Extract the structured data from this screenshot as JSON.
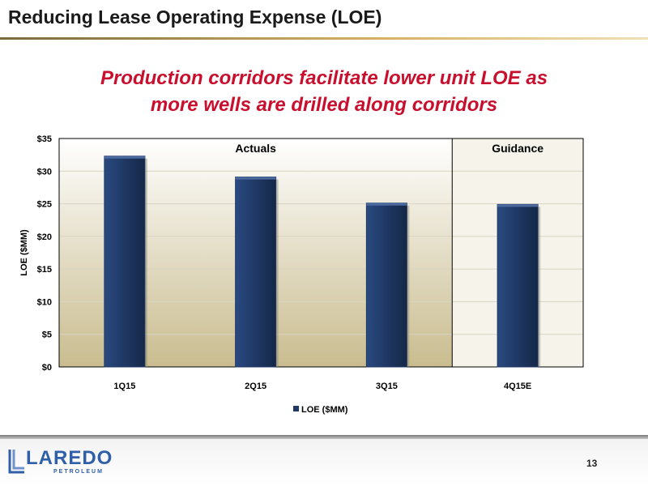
{
  "slide": {
    "title": "Reducing Lease Operating Expense (LOE)",
    "subtitle_line1": "Production corridors facilitate lower unit LOE as",
    "subtitle_line2": "more wells are drilled along corridors",
    "page_number": "13"
  },
  "logo": {
    "word": "LAREDO",
    "sub": "PETROLEUM"
  },
  "colors": {
    "bar": "#1f3864",
    "subtitle": "#c8102e",
    "panel_gradient_top": "#ffffff",
    "panel_gradient_bottom": "#c9bc8f",
    "guidance_panel": "#f5f3ea"
  },
  "chart_data": {
    "type": "bar",
    "categories": [
      "1Q15",
      "2Q15",
      "3Q15",
      "4Q15E"
    ],
    "series": [
      {
        "name": "LOE ($MM)",
        "values": [
          32.3,
          29.1,
          25.1,
          24.9
        ]
      }
    ],
    "ylabel": "LOE ($MM)",
    "xlabel": "",
    "ylim": [
      0,
      35
    ],
    "yticks": [
      0,
      5,
      10,
      15,
      20,
      25,
      30,
      35
    ],
    "ytick_labels": [
      "$0",
      "$5",
      "$10",
      "$15",
      "$20",
      "$25",
      "$30",
      "$35"
    ],
    "sections": [
      {
        "label": "Actuals",
        "categories": [
          "1Q15",
          "2Q15",
          "3Q15"
        ]
      },
      {
        "label": "Guidance",
        "categories": [
          "4Q15E"
        ]
      }
    ],
    "legend": {
      "entries": [
        "LOE ($MM)"
      ],
      "placement": "bottom"
    },
    "grid": true
  }
}
